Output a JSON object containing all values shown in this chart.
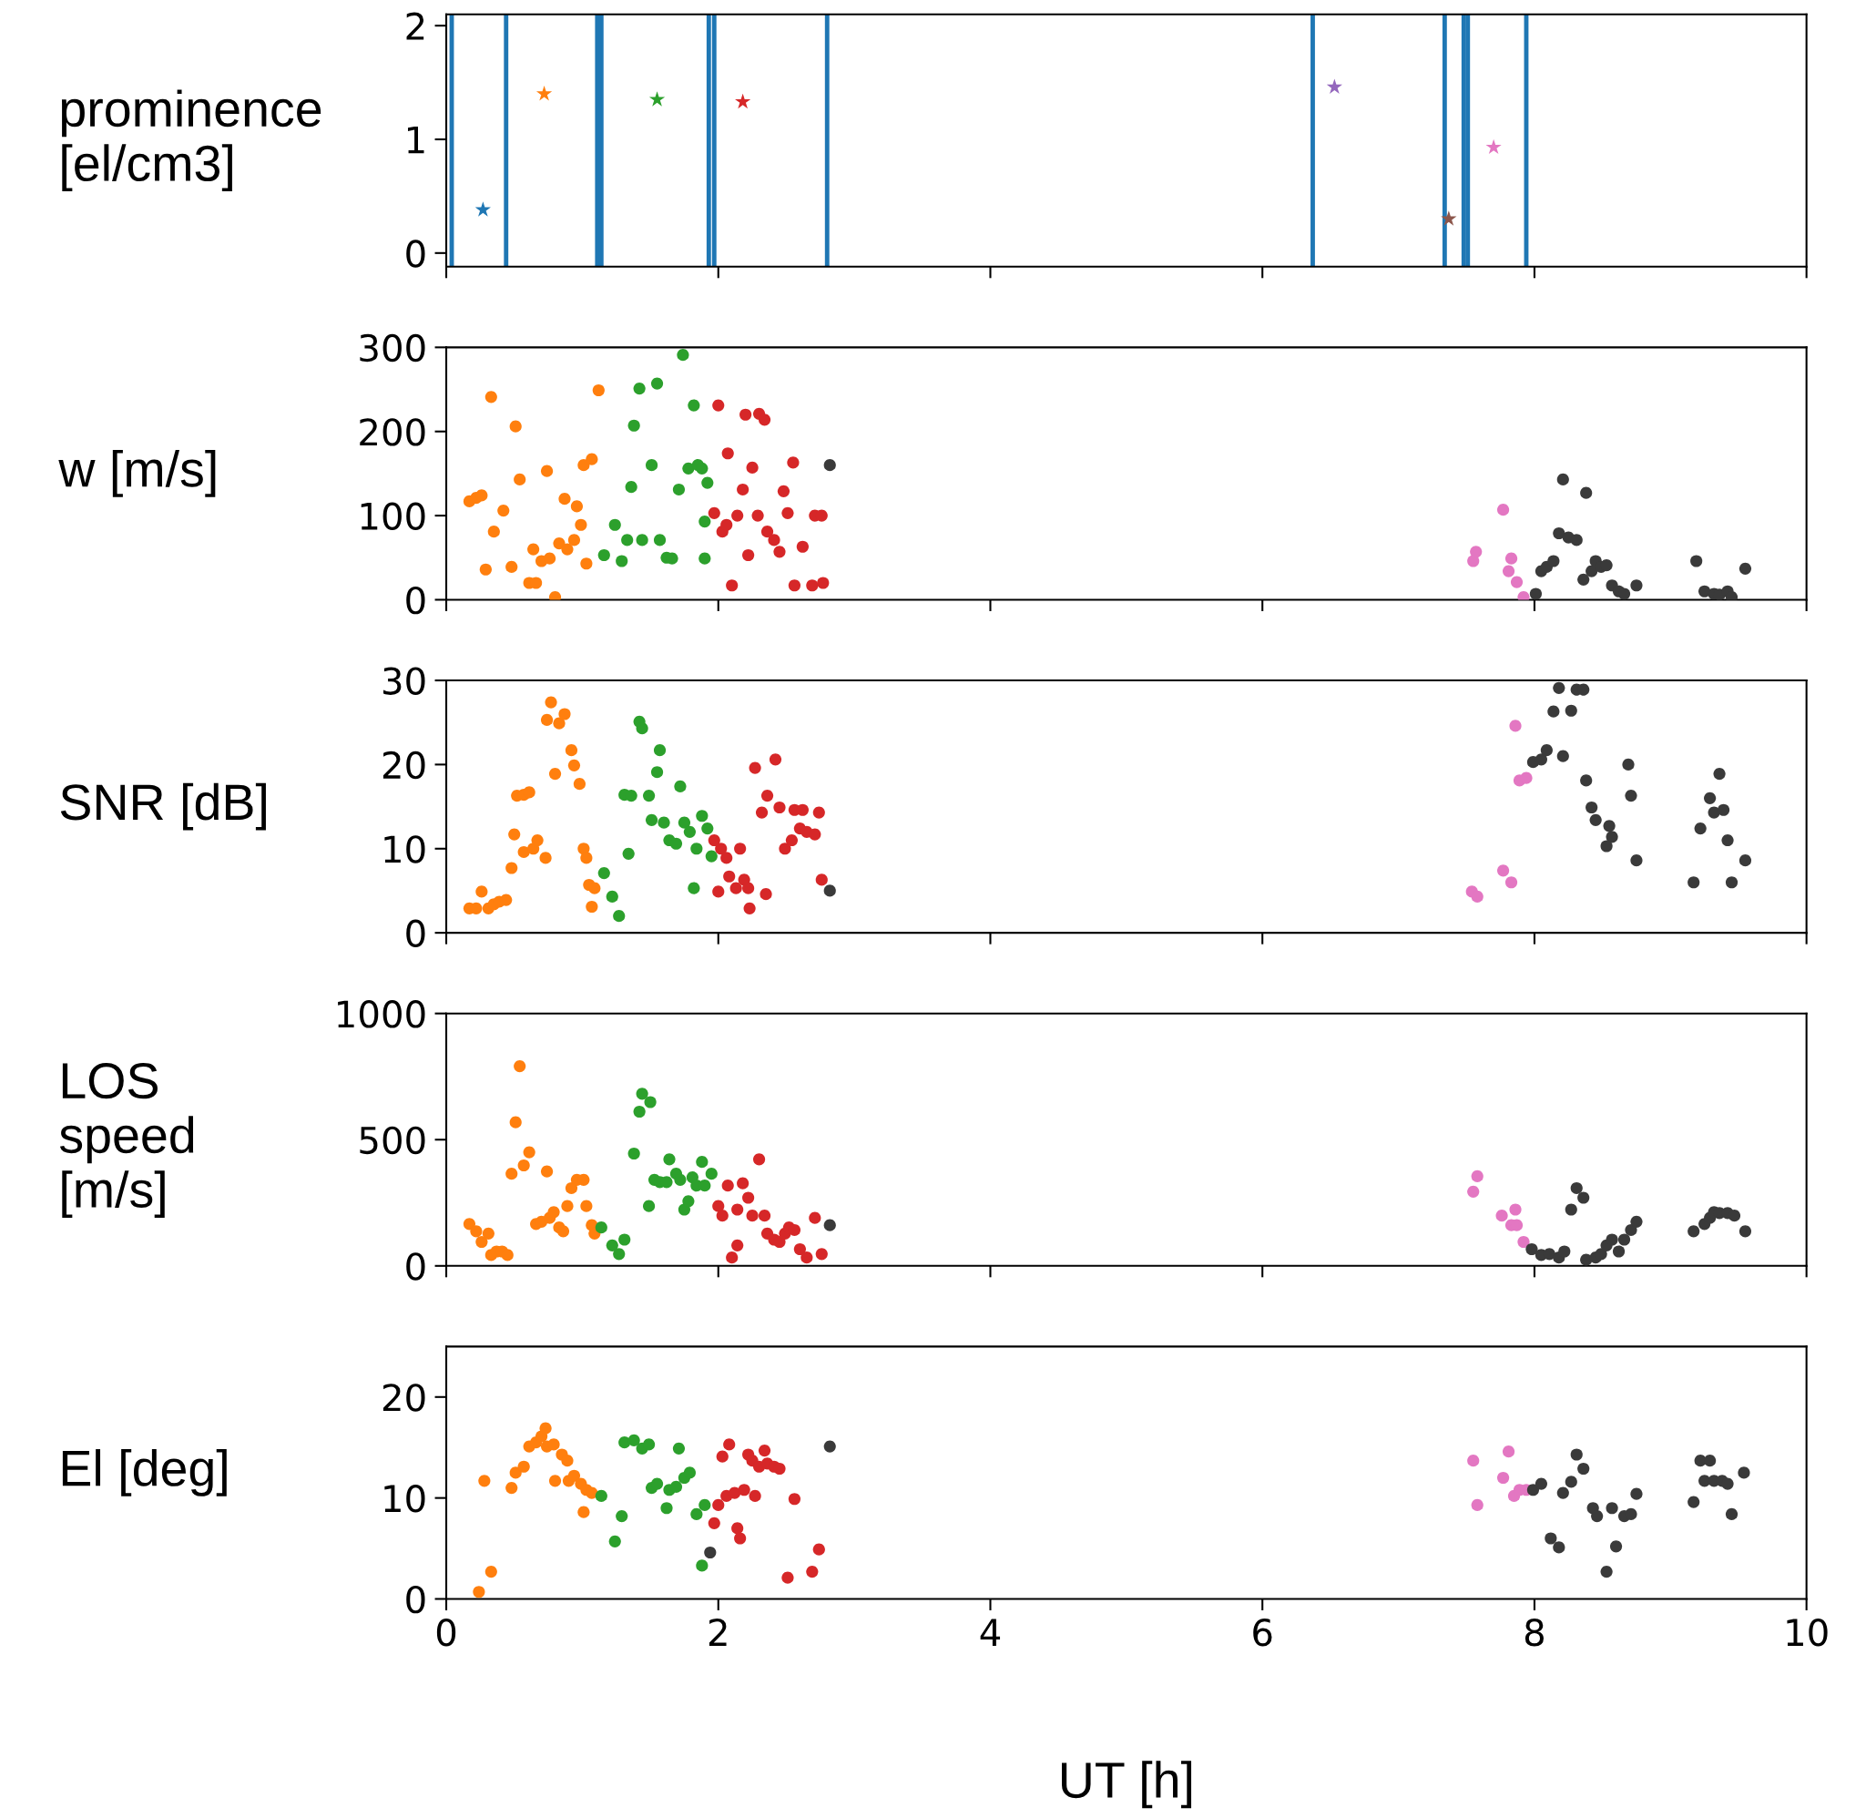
{
  "chart_data": [
    {
      "type": "scatter",
      "ylabel": "prominence\n[el/cm3]",
      "xlim": [
        0,
        10
      ],
      "ylim": [
        -0.12,
        2.1
      ],
      "xticks": [
        0,
        2,
        4,
        6,
        8,
        10
      ],
      "yticks": [
        0,
        1,
        2
      ],
      "tick_labels": "y",
      "marker": "star",
      "ref_lines": [
        {
          "axis": "x",
          "value": 0.04,
          "color": "#1f77b4"
        },
        {
          "axis": "x",
          "value": 0.44,
          "color": "#1f77b4"
        },
        {
          "axis": "x",
          "value": 1.11,
          "color": "#1f77b4"
        },
        {
          "axis": "x",
          "value": 1.14,
          "color": "#1f77b4"
        },
        {
          "axis": "x",
          "value": 1.93,
          "color": "#1f77b4"
        },
        {
          "axis": "x",
          "value": 1.97,
          "color": "#1f77b4"
        },
        {
          "axis": "x",
          "value": 2.8,
          "color": "#1f77b4"
        },
        {
          "axis": "x",
          "value": 6.37,
          "color": "#1f77b4"
        },
        {
          "axis": "x",
          "value": 7.34,
          "color": "#1f77b4"
        },
        {
          "axis": "x",
          "value": 7.48,
          "color": "#1f77b4"
        },
        {
          "axis": "x",
          "value": 7.51,
          "color": "#1f77b4"
        },
        {
          "axis": "x",
          "value": 7.94,
          "color": "#1f77b4"
        }
      ],
      "series": [
        {
          "x": [
            0.27,
            0.72,
            1.55,
            2.18,
            6.53,
            7.37,
            7.7
          ],
          "values": [
            0.38,
            1.4,
            1.35,
            1.33,
            1.46,
            0.3,
            0.93
          ],
          "colors": [
            "#1f77b4",
            "#ff7f0e",
            "#2ca02c",
            "#d62728",
            "#9467bd",
            "#8c564b",
            "#e377c2"
          ]
        }
      ]
    },
    {
      "type": "scatter",
      "ylabel": "w [m/s]",
      "xlim": [
        0,
        10
      ],
      "ylim": [
        0,
        300
      ],
      "xticks": [
        0,
        2,
        4,
        6,
        8,
        10
      ],
      "yticks": [
        0,
        100,
        200,
        300
      ],
      "tick_labels": "y",
      "marker": "circle",
      "series": [
        {
          "color": "#ff7f0e",
          "x": [
            0.17,
            0.22,
            0.26,
            0.33,
            0.29,
            0.35,
            0.42,
            0.48,
            0.51,
            0.54,
            0.61,
            0.66,
            0.64,
            0.7,
            0.74,
            0.76,
            0.8,
            0.83,
            0.87,
            0.89,
            0.94,
            0.96,
            0.99,
            1.01,
            1.03,
            1.07,
            1.12
          ],
          "values": [
            117,
            121,
            124,
            241,
            36,
            81,
            106,
            39,
            206,
            143,
            20,
            20,
            60,
            46,
            153,
            49,
            3,
            67,
            120,
            60,
            71,
            111,
            89,
            160,
            43,
            167,
            249
          ]
        },
        {
          "color": "#2ca02c",
          "x": [
            1.16,
            1.24,
            1.29,
            1.33,
            1.36,
            1.38,
            1.42,
            1.44,
            1.51,
            1.55,
            1.57,
            1.62,
            1.66,
            1.71,
            1.74,
            1.78,
            1.82,
            1.85,
            1.88,
            1.9,
            1.92,
            1.9
          ],
          "values": [
            53,
            89,
            46,
            71,
            134,
            207,
            251,
            71,
            160,
            257,
            71,
            50,
            49,
            131,
            291,
            156,
            231,
            160,
            156,
            49,
            139,
            93
          ]
        },
        {
          "color": "#d62728",
          "x": [
            1.97,
            2.0,
            2.03,
            2.07,
            2.1,
            2.14,
            2.18,
            2.2,
            2.25,
            2.29,
            2.3,
            2.34,
            2.36,
            2.41,
            2.45,
            2.48,
            2.51,
            2.55,
            2.56,
            2.62,
            2.69,
            2.71,
            2.76,
            2.77,
            2.06,
            2.22
          ],
          "values": [
            103,
            231,
            81,
            174,
            17,
            100,
            131,
            220,
            157,
            100,
            221,
            214,
            81,
            71,
            57,
            129,
            103,
            163,
            17,
            63,
            17,
            100,
            100,
            20,
            89,
            53
          ]
        },
        {
          "color": "#e377c2",
          "x": [
            7.77,
            7.57,
            7.55,
            7.83,
            7.81,
            7.87,
            7.92
          ],
          "values": [
            107,
            57,
            46,
            49,
            34,
            21,
            3
          ]
        },
        {
          "color": "#3a3a3a",
          "x": [
            2.82,
            8.01,
            8.05,
            8.09,
            8.14,
            8.18,
            8.21,
            8.25,
            8.31,
            8.36,
            8.38,
            8.42,
            8.45,
            8.49,
            8.53,
            8.57,
            8.62,
            8.66,
            8.75,
            9.19,
            9.25,
            9.32,
            9.36,
            9.42,
            9.45,
            9.55
          ],
          "values": [
            160,
            7,
            34,
            39,
            46,
            79,
            143,
            74,
            71,
            24,
            127,
            34,
            46,
            39,
            41,
            17,
            10,
            7,
            17,
            46,
            10,
            7,
            6,
            10,
            3,
            37
          ]
        }
      ]
    },
    {
      "type": "scatter",
      "ylabel": "SNR [dB]",
      "xlim": [
        0,
        10
      ],
      "ylim": [
        0,
        30
      ],
      "xticks": [
        0,
        2,
        4,
        6,
        8,
        10
      ],
      "yticks": [
        0,
        10,
        20,
        30
      ],
      "tick_labels": "y",
      "marker": "circle",
      "series": [
        {
          "color": "#ff7f0e",
          "x": [
            0.17,
            0.22,
            0.26,
            0.31,
            0.35,
            0.39,
            0.44,
            0.48,
            0.5,
            0.52,
            0.57,
            0.61,
            0.57,
            0.64,
            0.67,
            0.73,
            0.77,
            0.74,
            0.83,
            0.87,
            0.8,
            0.92,
            0.94,
            0.98,
            1.01,
            1.03,
            1.05,
            1.09,
            1.07
          ],
          "values": [
            2.9,
            2.9,
            4.9,
            2.9,
            3.4,
            3.7,
            3.9,
            7.7,
            11.7,
            16.3,
            16.4,
            16.7,
            9.6,
            10,
            11,
            8.9,
            27.4,
            25.3,
            24.9,
            26,
            18.9,
            21.7,
            19.9,
            17.7,
            10,
            8.9,
            5.7,
            5.3,
            3.1
          ]
        },
        {
          "color": "#2ca02c",
          "x": [
            1.16,
            1.22,
            1.27,
            1.31,
            1.36,
            1.34,
            1.42,
            1.44,
            1.49,
            1.51,
            1.55,
            1.57,
            1.6,
            1.64,
            1.69,
            1.72,
            1.75,
            1.79,
            1.82,
            1.84,
            1.88,
            1.92,
            1.95
          ],
          "values": [
            7.1,
            4.3,
            2,
            16.4,
            16.3,
            9.4,
            25.1,
            24.3,
            16.3,
            13.4,
            19.1,
            21.7,
            13.1,
            11,
            10.6,
            17.4,
            13.1,
            12,
            5.3,
            10,
            13.9,
            12.4,
            9.1
          ]
        },
        {
          "color": "#d62728",
          "x": [
            1.97,
            2.0,
            2.02,
            2.06,
            2.08,
            2.13,
            2.16,
            2.19,
            2.22,
            2.23,
            2.27,
            2.32,
            2.35,
            2.36,
            2.42,
            2.45,
            2.49,
            2.54,
            2.56,
            2.6,
            2.62,
            2.65,
            2.71,
            2.74,
            2.76
          ],
          "values": [
            11,
            4.9,
            10,
            8.9,
            6.7,
            5.3,
            10,
            6.3,
            5.3,
            2.9,
            19.6,
            14.3,
            4.6,
            16.3,
            20.6,
            14.9,
            10,
            11,
            14.6,
            12.4,
            14.6,
            12,
            11.7,
            14.3,
            6.3
          ]
        },
        {
          "color": "#e377c2",
          "x": [
            7.54,
            7.58,
            7.77,
            7.83,
            7.86,
            7.89,
            7.94
          ],
          "values": [
            4.9,
            4.3,
            7.4,
            6,
            24.6,
            18.1,
            18.4
          ]
        },
        {
          "color": "#3a3a3a",
          "x": [
            2.82,
            7.99,
            8.05,
            8.09,
            8.14,
            8.18,
            8.21,
            8.27,
            8.31,
            8.36,
            8.38,
            8.42,
            8.45,
            8.55,
            8.57,
            8.53,
            8.69,
            8.71,
            8.75,
            9.17,
            9.22,
            9.29,
            9.32,
            9.36,
            9.39,
            9.42,
            9.45,
            9.55
          ],
          "values": [
            5,
            20.3,
            20.6,
            21.7,
            26.3,
            29.1,
            21,
            26.4,
            28.9,
            28.9,
            18.1,
            14.9,
            13.4,
            12.7,
            11.4,
            10.3,
            20,
            16.3,
            8.6,
            6,
            12.4,
            16,
            14.3,
            18.9,
            14.6,
            11,
            6,
            8.6
          ]
        }
      ]
    },
    {
      "type": "scatter",
      "ylabel": "LOS\nspeed\n[m/s]",
      "xlim": [
        0,
        10
      ],
      "ylim": [
        0,
        1000
      ],
      "xticks": [
        0,
        2,
        4,
        6,
        8,
        10
      ],
      "yticks": [
        0,
        500,
        1000
      ],
      "tick_labels": "y",
      "marker": "circle",
      "series": [
        {
          "color": "#ff7f0e",
          "x": [
            0.17,
            0.22,
            0.26,
            0.31,
            0.33,
            0.37,
            0.41,
            0.45,
            0.48,
            0.51,
            0.54,
            0.57,
            0.61,
            0.66,
            0.7,
            0.74,
            0.76,
            0.79,
            0.83,
            0.86,
            0.89,
            0.92,
            0.96,
            1.01,
            1.03,
            1.07,
            1.09
          ],
          "values": [
            166,
            137,
            95,
            128,
            43,
            57,
            57,
            43,
            365,
            569,
            791,
            398,
            450,
            166,
            175,
            374,
            190,
            213,
            152,
            137,
            237,
            308,
            341,
            341,
            237,
            161,
            128
          ]
        },
        {
          "color": "#2ca02c",
          "x": [
            1.14,
            1.22,
            1.27,
            1.31,
            1.38,
            1.42,
            1.44,
            1.5,
            1.49,
            1.53,
            1.57,
            1.62,
            1.64,
            1.69,
            1.72,
            1.75,
            1.78,
            1.81,
            1.84,
            1.88,
            1.9,
            1.95
          ],
          "values": [
            152,
            81,
            47,
            104,
            445,
            611,
            682,
            649,
            237,
            341,
            332,
            332,
            422,
            365,
            341,
            223,
            256,
            351,
            318,
            412,
            318,
            365
          ]
        },
        {
          "color": "#d62728",
          "x": [
            2.0,
            2.03,
            2.07,
            2.1,
            2.14,
            2.14,
            2.18,
            2.22,
            2.25,
            2.3,
            2.34,
            2.36,
            2.41,
            2.45,
            2.49,
            2.52,
            2.56,
            2.6,
            2.65,
            2.71,
            2.76
          ],
          "values": [
            237,
            199,
            318,
            33,
            81,
            223,
            327,
            270,
            199,
            422,
            199,
            128,
            104,
            95,
            128,
            152,
            142,
            66,
            33,
            190,
            47
          ]
        },
        {
          "color": "#e377c2",
          "x": [
            7.55,
            7.58,
            7.76,
            7.86,
            7.83,
            7.87,
            7.92
          ],
          "values": [
            294,
            355,
            199,
            223,
            161,
            161,
            95
          ]
        },
        {
          "color": "#3a3a3a",
          "x": [
            2.82,
            7.98,
            8.05,
            8.11,
            8.18,
            8.22,
            8.27,
            8.31,
            8.36,
            8.38,
            8.45,
            8.49,
            8.53,
            8.57,
            8.62,
            8.66,
            8.71,
            8.75,
            9.17,
            9.25,
            9.29,
            9.32,
            9.36,
            9.42,
            9.47,
            9.55
          ],
          "values": [
            161,
            66,
            43,
            47,
            33,
            57,
            223,
            308,
            270,
            24,
            33,
            47,
            81,
            104,
            57,
            104,
            142,
            175,
            137,
            166,
            190,
            213,
            209,
            209,
            199,
            137
          ]
        }
      ]
    },
    {
      "type": "scatter",
      "ylabel": "El [deg]",
      "xlabel": "UT [h]",
      "xlim": [
        0,
        10
      ],
      "ylim": [
        0,
        25
      ],
      "xticks": [
        0,
        2,
        4,
        6,
        8,
        10
      ],
      "yticks": [
        0,
        10,
        20
      ],
      "marker": "circle",
      "series": [
        {
          "color": "#ff7f0e",
          "x": [
            0.24,
            0.28,
            0.33,
            0.48,
            0.51,
            0.57,
            0.61,
            0.66,
            0.7,
            0.73,
            0.74,
            0.79,
            0.8,
            0.85,
            0.89,
            0.9,
            0.94,
            0.99,
            1.01,
            1.03,
            1.07
          ],
          "values": [
            0.7,
            11.7,
            2.7,
            11,
            12.5,
            13.1,
            15.1,
            15.5,
            16.1,
            16.9,
            15.1,
            15.3,
            11.7,
            14.3,
            13.7,
            11.7,
            12.2,
            11.4,
            8.6,
            10.8,
            10.5
          ]
        },
        {
          "color": "#2ca02c",
          "x": [
            1.14,
            1.24,
            1.29,
            1.31,
            1.38,
            1.44,
            1.49,
            1.51,
            1.55,
            1.62,
            1.64,
            1.69,
            1.71,
            1.75,
            1.79,
            1.84,
            1.88,
            1.9
          ],
          "values": [
            10.2,
            5.7,
            8.2,
            15.5,
            15.7,
            14.9,
            15.3,
            11,
            11.4,
            9,
            10.8,
            11.1,
            14.9,
            12,
            12.5,
            8.4,
            3.3,
            9.3
          ]
        },
        {
          "color": "#d62728",
          "x": [
            1.97,
            2.0,
            2.03,
            2.06,
            2.08,
            2.12,
            2.14,
            2.16,
            2.19,
            2.22,
            2.25,
            2.27,
            2.3,
            2.34,
            2.36,
            2.41,
            2.45,
            2.51,
            2.56,
            2.69,
            2.74
          ],
          "values": [
            7.5,
            9.3,
            14.1,
            10.2,
            15.3,
            10.5,
            7,
            6,
            10.8,
            14.3,
            13.7,
            10.2,
            13.1,
            14.7,
            13.4,
            13.1,
            12.9,
            2.1,
            9.9,
            2.7,
            4.9
          ]
        },
        {
          "color": "#e377c2",
          "x": [
            7.55,
            7.58,
            7.77,
            7.81,
            7.85,
            7.89,
            7.94
          ],
          "values": [
            13.7,
            9.3,
            12,
            14.6,
            10.2,
            10.8,
            10.8
          ]
        },
        {
          "color": "#3a3a3a",
          "x": [
            1.94,
            2.82,
            7.99,
            8.05,
            8.12,
            8.18,
            8.21,
            8.27,
            8.31,
            8.36,
            8.43,
            8.46,
            8.53,
            8.57,
            8.6,
            8.66,
            8.71,
            8.75,
            9.17,
            9.22,
            9.25,
            9.29,
            9.32,
            9.38,
            9.42,
            9.45,
            9.54
          ],
          "values": [
            4.6,
            15.1,
            10.8,
            11.4,
            6,
            5.1,
            10.5,
            11.6,
            14.3,
            12.9,
            9,
            8.2,
            2.7,
            9,
            5.2,
            8.2,
            8.4,
            10.4,
            9.6,
            13.7,
            11.7,
            13.7,
            11.7,
            11.7,
            11.4,
            8.4,
            12.5
          ]
        }
      ]
    }
  ]
}
